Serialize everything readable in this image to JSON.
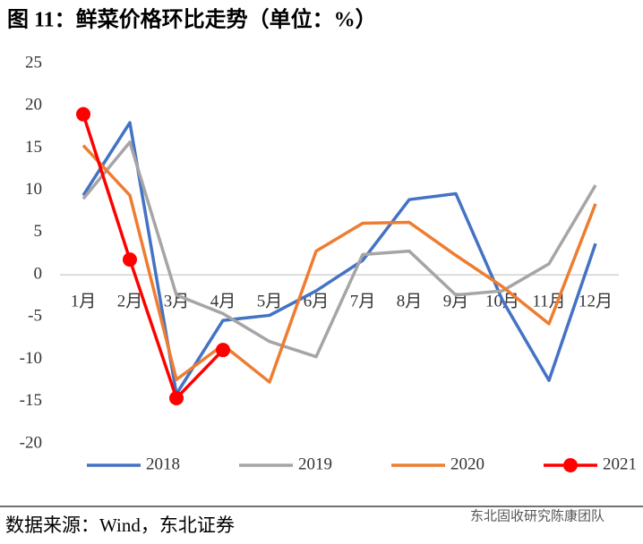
{
  "chart_data": {
    "type": "line",
    "title": "图 11：鲜菜价格环比走势（单位：%）",
    "categories": [
      "1月",
      "2月",
      "3月",
      "4月",
      "5月",
      "6月",
      "7月",
      "8月",
      "9月",
      "10月",
      "11月",
      "12月"
    ],
    "series": [
      {
        "name": "2018",
        "color": "#4472c4",
        "values": [
          9.4,
          18,
          -14.1,
          -5.4,
          -4.8,
          -1.9,
          1.7,
          8.9,
          9.6,
          -3,
          -12.5,
          3.7
        ]
      },
      {
        "name": "2019",
        "color": "#a5a5a5",
        "values": [
          9.0,
          15.7,
          -2.4,
          -4.6,
          -7.9,
          -9.7,
          2.4,
          2.8,
          -2.4,
          -1.9,
          1.3,
          10.6
        ]
      },
      {
        "name": "2020",
        "color": "#ed7d31",
        "values": [
          15.3,
          9.4,
          -12.4,
          -8.3,
          -12.7,
          2.8,
          6.1,
          6.2,
          2.3,
          -1.4,
          -5.8,
          8.4
        ]
      },
      {
        "name": "2021",
        "color": "#ff0000",
        "markers": true,
        "values": [
          19,
          1.8,
          -14.6,
          -8.9,
          null,
          null,
          null,
          null,
          null,
          null,
          null,
          null
        ]
      }
    ],
    "ylim": [
      -20,
      25
    ],
    "yticks": [
      -20,
      -15,
      -10,
      -5,
      0,
      5,
      10,
      15,
      20,
      25
    ],
    "legend": "bottom",
    "source": "数据来源：Wind，东北证券",
    "watermark": "东北固收研究陈康团队"
  }
}
